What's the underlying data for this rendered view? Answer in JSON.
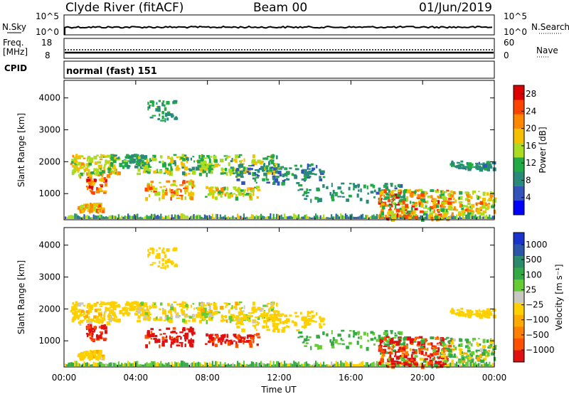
{
  "header": {
    "station": "Clyde River (fitACF)",
    "beam": "Beam 00",
    "date": "01/Jun/2019"
  },
  "panels": {
    "nsky": {
      "left_label": "N.Sky",
      "left_ticks": [
        "10^5",
        "10^0"
      ],
      "right_label": "N.Search",
      "right_ticks": [
        "10^5",
        "10^0"
      ]
    },
    "freq": {
      "left_label_1": "Freq.",
      "left_label_2": "[MHz]",
      "left_ticks": [
        "18",
        "8"
      ],
      "right_label": "Nave",
      "right_ticks": [
        "60",
        "0"
      ]
    },
    "cpid": {
      "label": "CPID",
      "value": "normal (fast) 151"
    }
  },
  "chart_data": [
    {
      "type": "heatmap",
      "id": "power",
      "ylabel": "Slant Range [km]",
      "x_ticks": [
        "00:00",
        "04:00",
        "08:00",
        "12:00",
        "16:00",
        "20:00",
        "00:00"
      ],
      "y_ticks": [
        1000,
        2000,
        3000,
        4000
      ],
      "ylim": [
        180,
        4550
      ],
      "xlim_hours": [
        0,
        24
      ],
      "colorbar": {
        "label": "Power [dB]",
        "ticks": [
          4,
          8,
          12,
          16,
          20,
          24,
          28
        ],
        "range": [
          0,
          30
        ],
        "colors": [
          "#0000ff",
          "#3355bb",
          "#2a8a7a",
          "#22aa44",
          "#aadd22",
          "#f5c000",
          "#ff8800",
          "#ff4400",
          "#dd0000"
        ]
      }
    },
    {
      "type": "heatmap",
      "id": "velocity",
      "ylabel": "Slant Range [km]",
      "x_ticks": [
        "00:00",
        "04:00",
        "08:00",
        "12:00",
        "16:00",
        "20:00",
        "00:00"
      ],
      "y_ticks": [
        1000,
        2000,
        3000,
        4000
      ],
      "ylim": [
        180,
        4550
      ],
      "xlim_hours": [
        0,
        24
      ],
      "xlabel": "Time UT",
      "colorbar": {
        "label": "Velocity [m s⁻¹]",
        "ticks": [
          "1000",
          "500",
          "100",
          "25",
          "−25",
          "−100",
          "−500",
          "−1000"
        ],
        "colors": [
          "#1a33cc",
          "#2a55aa",
          "#2a8a6a",
          "#33aa44",
          "#66cc33",
          "#c8c8c0",
          "#ffd000",
          "#ffaa00",
          "#ff8000",
          "#ff5000",
          "#e01010"
        ]
      }
    }
  ],
  "scatter_regions": [
    {
      "t0": 0.3,
      "t1": 3.0,
      "r0": 1600,
      "r1": 2250,
      "n": 130,
      "p": [
        12,
        22
      ],
      "v": [
        -30,
        30
      ]
    },
    {
      "t0": 0.7,
      "t1": 2.2,
      "r0": 480,
      "r1": 720,
      "n": 70,
      "p": [
        14,
        24
      ],
      "v": [
        -30,
        30
      ]
    },
    {
      "t0": 1.2,
      "t1": 2.3,
      "r0": 1050,
      "r1": 1550,
      "n": 45,
      "p": [
        18,
        29
      ],
      "v": [
        -600,
        -100
      ]
    },
    {
      "t0": 2.5,
      "t1": 4.5,
      "r0": 1850,
      "r1": 2250,
      "n": 60,
      "p": [
        6,
        14
      ],
      "v": [
        -20,
        25
      ]
    },
    {
      "t0": 4.6,
      "t1": 6.2,
      "r0": 3300,
      "r1": 3950,
      "n": 40,
      "p": [
        6,
        14
      ],
      "v": [
        -25,
        25
      ]
    },
    {
      "t0": 4.5,
      "t1": 7.2,
      "r0": 880,
      "r1": 1450,
      "n": 80,
      "p": [
        14,
        26
      ],
      "v": [
        -700,
        -150
      ]
    },
    {
      "t0": 4.0,
      "t1": 12.0,
      "r0": 1650,
      "r1": 2250,
      "n": 260,
      "p": [
        8,
        20
      ],
      "v": [
        -30,
        60
      ]
    },
    {
      "t0": 7.8,
      "t1": 10.8,
      "r0": 900,
      "r1": 1250,
      "n": 80,
      "p": [
        12,
        22
      ],
      "v": [
        -500,
        -100
      ]
    },
    {
      "t0": 9.5,
      "t1": 14.5,
      "r0": 1350,
      "r1": 1950,
      "n": 110,
      "p": [
        4,
        12
      ],
      "v": [
        -20,
        20
      ]
    },
    {
      "t0": 13.0,
      "t1": 19.0,
      "r0": 800,
      "r1": 1350,
      "n": 90,
      "p": [
        6,
        12
      ],
      "v": [
        50,
        200
      ]
    },
    {
      "t0": 17.5,
      "t1": 21.5,
      "r0": 240,
      "r1": 1150,
      "n": 260,
      "p": [
        10,
        28
      ],
      "v": [
        -700,
        200
      ]
    },
    {
      "t0": 21.0,
      "t1": 24.0,
      "r0": 400,
      "r1": 1100,
      "n": 120,
      "p": [
        12,
        24
      ],
      "v": [
        -40,
        200
      ]
    },
    {
      "t0": 21.5,
      "t1": 24.0,
      "r0": 1800,
      "r1": 2050,
      "n": 60,
      "p": [
        6,
        12
      ],
      "v": [
        -20,
        20
      ]
    }
  ]
}
